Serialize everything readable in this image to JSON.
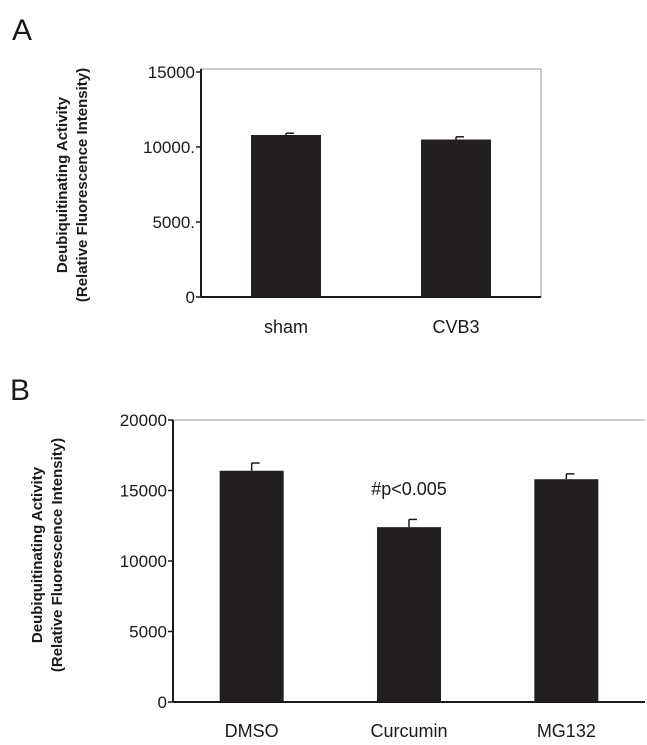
{
  "chart_data": [
    {
      "type": "bar",
      "panel": "A",
      "ylabel_line1": "Deubiquitinating Activity",
      "ylabel_line2": "(Relative Fluorescence Intensity)",
      "categories": [
        "sham",
        "CVB3"
      ],
      "values": [
        10800,
        10500
      ],
      "errors": [
        120,
        180
      ],
      "ylim": [
        0,
        15000
      ],
      "yticks": [
        0,
        5000,
        10000,
        15000
      ],
      "ytick_labels": [
        "0",
        "5000.",
        "10000.",
        "15000"
      ],
      "annotations": [],
      "bar_color": "#231f20",
      "grid": false
    },
    {
      "type": "bar",
      "panel": "B",
      "ylabel_line1": "Deubiquitinating Activity",
      "ylabel_line2": "(Relative Fluorescence Intensity)",
      "categories": [
        "DMSO",
        "Curcumin",
        "MG132"
      ],
      "values": [
        16400,
        12400,
        15800
      ],
      "errors": [
        550,
        550,
        380
      ],
      "ylim": [
        0,
        20000
      ],
      "yticks": [
        0,
        5000,
        10000,
        15000,
        20000
      ],
      "ytick_labels": [
        "0",
        "5000",
        "10000",
        "15000",
        "20000"
      ],
      "annotations": [
        {
          "text": "#p<0.005",
          "category_index": 1
        }
      ],
      "bar_color": "#231f20",
      "grid": false
    }
  ]
}
